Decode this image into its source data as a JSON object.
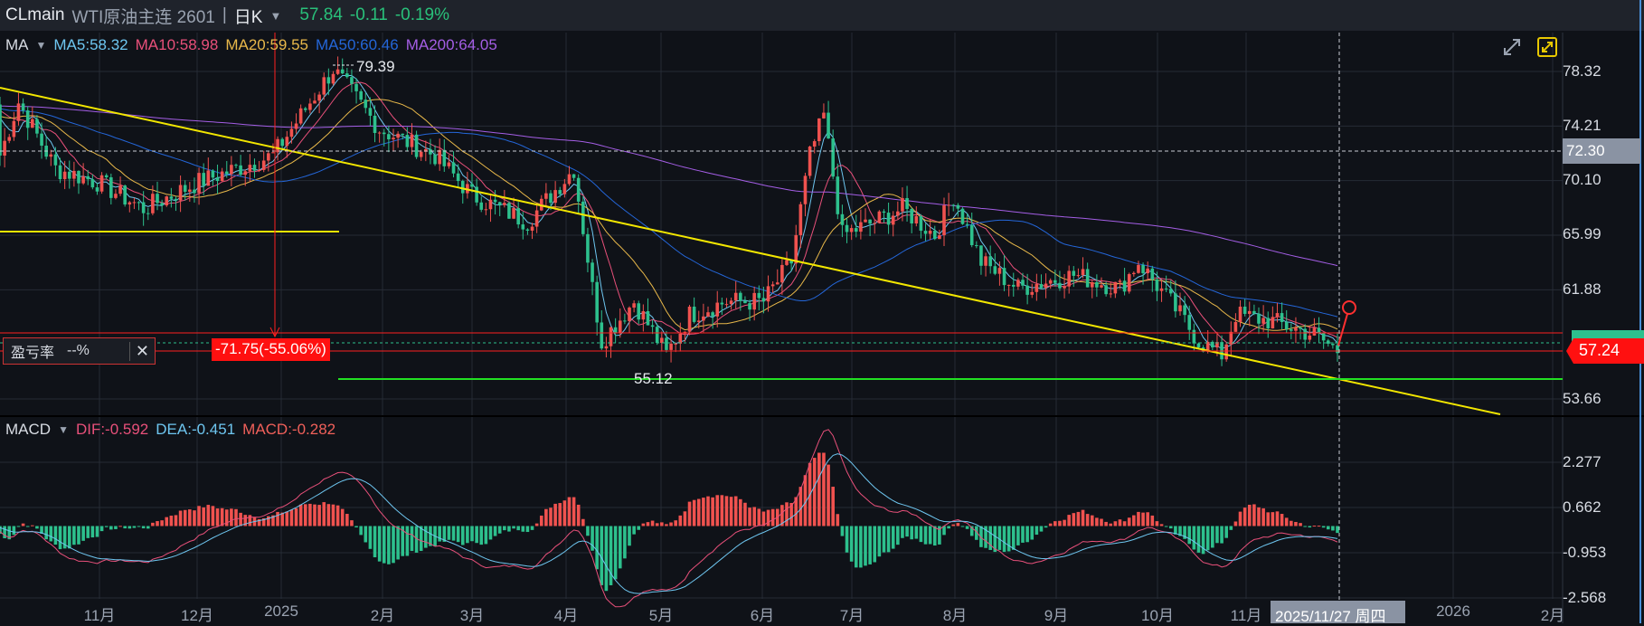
{
  "header": {
    "symbol": "CLmain",
    "name": "WTI原油主连 2601",
    "separator": "|",
    "period": "日K",
    "caret": "▼",
    "last": "57.84",
    "change": "-0.11",
    "change_pct": "-0.19%"
  },
  "ma_legend": {
    "label": "MA",
    "caret": "▼",
    "items": [
      {
        "text": "MA5:58.32",
        "color": "#6ec6f0"
      },
      {
        "text": "MA10:58.98",
        "color": "#e8507a"
      },
      {
        "text": "MA20:59.55",
        "color": "#e8b84a"
      },
      {
        "text": "MA50:60.46",
        "color": "#2466d8"
      },
      {
        "text": "MA200:64.05",
        "color": "#a45ee5"
      }
    ]
  },
  "macd_legend": {
    "label": "MACD",
    "caret": "▼",
    "items": [
      {
        "text": "DIF:-0.592",
        "color": "#e8507a"
      },
      {
        "text": "DEA:-0.451",
        "color": "#6ec6f0"
      },
      {
        "text": "MACD:-0.282",
        "color": "#f0605a"
      }
    ]
  },
  "price_axis": [
    "78.32",
    "74.21",
    "70.10",
    "65.99",
    "61.88",
    "53.66"
  ],
  "price_axis_values": [
    78.32,
    74.21,
    70.1,
    65.99,
    61.88,
    53.66
  ],
  "crosshair_price": "72.30",
  "current_price": "57.24",
  "macd_axis": [
    "2.277",
    "0.662",
    "-0.953",
    "-2.568"
  ],
  "macd_axis_values": [
    2.277,
    0.662,
    -0.953,
    -2.568
  ],
  "x_axis": [
    "11月",
    "12月",
    "2025",
    "2月",
    "3月",
    "4月",
    "5月",
    "6月",
    "7月",
    "8月",
    "9月",
    "10月",
    "11月",
    "2026",
    "2月"
  ],
  "crosshair_date": "2025/11/27 周四",
  "annotations": {
    "high": "79.39",
    "low": "55.12",
    "profit_label": "盈亏率",
    "profit_value": "--%",
    "close": "✕",
    "range_label": "-71.75(-55.06%)"
  },
  "colors": {
    "up": "#f0524f",
    "down": "#2dc08d",
    "bg": "#0f1218",
    "grid": "#262b35"
  },
  "chart_data": {
    "type": "candlestick",
    "bars": 290,
    "close_path_anchors": [
      [
        0,
        72
      ],
      [
        4,
        76
      ],
      [
        12,
        71
      ],
      [
        21,
        70
      ],
      [
        31,
        68
      ],
      [
        43,
        70
      ],
      [
        59,
        72
      ],
      [
        72,
        78.5
      ],
      [
        82,
        74
      ],
      [
        94,
        72
      ],
      [
        102,
        69
      ],
      [
        114,
        67
      ],
      [
        124,
        71
      ],
      [
        128,
        62
      ],
      [
        130,
        58
      ],
      [
        137,
        61
      ],
      [
        144,
        57
      ],
      [
        149,
        60
      ],
      [
        157,
        61
      ],
      [
        165,
        61
      ],
      [
        171,
        64
      ],
      [
        175,
        72
      ],
      [
        178,
        75
      ],
      [
        182,
        66
      ],
      [
        189,
        67
      ],
      [
        195,
        68
      ],
      [
        202,
        66
      ],
      [
        206,
        69
      ],
      [
        212,
        64
      ],
      [
        220,
        62
      ],
      [
        232,
        63
      ],
      [
        242,
        62
      ],
      [
        246,
        64
      ],
      [
        255,
        60
      ],
      [
        259,
        58
      ],
      [
        264,
        57
      ],
      [
        267,
        60
      ],
      [
        275,
        59.5
      ],
      [
        284,
        58.5
      ],
      [
        289,
        57.3
      ]
    ]
  }
}
